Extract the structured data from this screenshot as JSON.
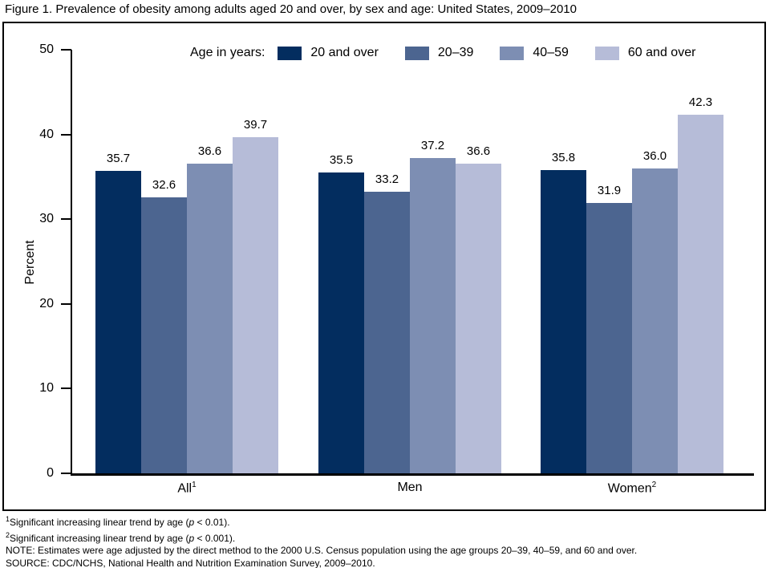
{
  "chart_data": {
    "type": "bar",
    "title": "Figure 1. Prevalence of obesity among adults aged 20 and over, by sex and age: United States, 2009–2010",
    "categories": [
      "All",
      "Men",
      "Women"
    ],
    "category_superscripts": [
      "1",
      "",
      "2"
    ],
    "series": [
      {
        "name": "20 and over",
        "color": "#032d5f",
        "values": [
          35.7,
          35.5,
          35.8
        ]
      },
      {
        "name": "20–39",
        "color": "#4c6590",
        "values": [
          32.6,
          33.2,
          31.9
        ]
      },
      {
        "name": "40–59",
        "color": "#7d8eb3",
        "values": [
          36.6,
          37.2,
          36.0
        ]
      },
      {
        "name": "60 and over",
        "color": "#b6bcd8",
        "values": [
          39.7,
          36.6,
          42.3
        ]
      }
    ],
    "xlabel": "",
    "ylabel": "Percent",
    "ylim": [
      0,
      50
    ],
    "yticks": [
      0,
      10,
      20,
      30,
      40,
      50
    ],
    "legend_title": "Age in years:",
    "legend_position": "top",
    "grid": false,
    "value_labels": true
  },
  "footnotes": [
    {
      "sup": "1",
      "before": "Significant increasing linear trend by age (",
      "italic": "p",
      "after": " < 0.01)."
    },
    {
      "sup": "2",
      "before": "Significant increasing linear trend by age (",
      "italic": "p",
      "after": " < 0.001)."
    },
    {
      "sup": "",
      "before": "NOTE: Estimates were age adjusted by the direct method to the 2000 U.S. Census population using the age groups 20–39, 40–59, and 60 and over.",
      "italic": "",
      "after": ""
    },
    {
      "sup": "",
      "before": "SOURCE: CDC/NCHS, National Health and Nutrition Examination Survey, 2009–2010.",
      "italic": "",
      "after": ""
    }
  ]
}
